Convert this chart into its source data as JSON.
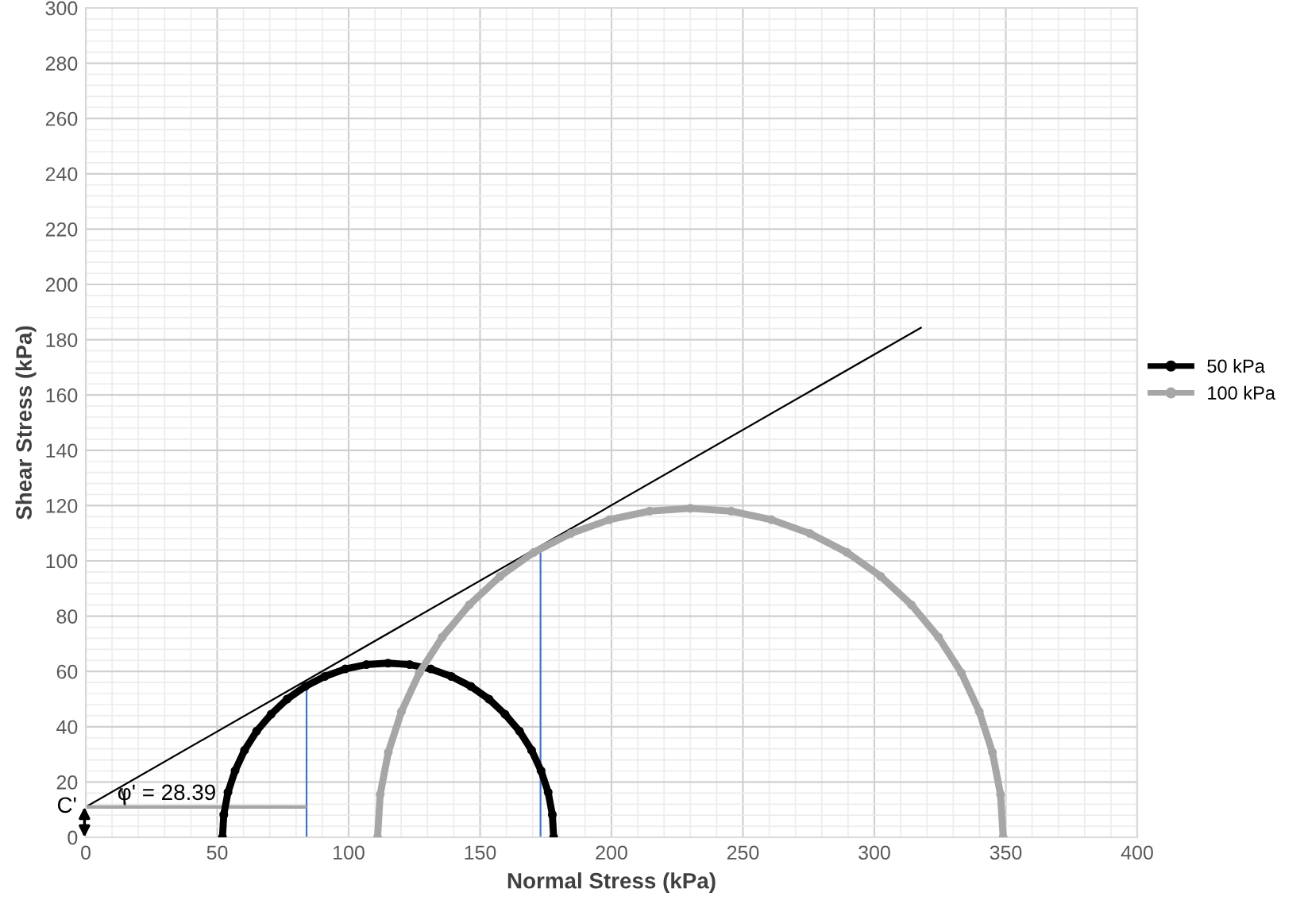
{
  "chart_data": {
    "type": "line",
    "xlabel": "Normal Stress (kPa)",
    "ylabel": "Shear Stress (kPa)",
    "xlim": [
      0,
      400
    ],
    "ylim": [
      0,
      300
    ],
    "xticks": [
      0,
      50,
      100,
      150,
      200,
      250,
      300,
      350,
      400
    ],
    "yticks": [
      0,
      20,
      40,
      60,
      80,
      100,
      120,
      140,
      160,
      180,
      200,
      220,
      240,
      260,
      280,
      300
    ],
    "grid": true,
    "legend": "right",
    "series": [
      {
        "name": "50 kPa",
        "color": "#000000",
        "marker": "circle",
        "x": [
          178,
          177.5,
          175.9,
          173.2,
          169.6,
          165,
          159.5,
          153.4,
          146.5,
          139.1,
          131.3,
          123.2,
          115,
          106.8,
          98.7,
          90.9,
          83.5,
          76.6,
          70.5,
          65,
          60.4,
          56.8,
          54.1,
          52.5,
          52
        ],
        "values": [
          0,
          8.2,
          16.3,
          24.1,
          31.5,
          38.4,
          44.5,
          50.0,
          54.6,
          58.2,
          60.9,
          62.5,
          63,
          62.5,
          60.9,
          58.2,
          54.6,
          50.0,
          44.5,
          38.4,
          31.5,
          24.1,
          16.3,
          8.2,
          0
        ]
      },
      {
        "name": "100 kPa",
        "color": "#a6a6a6",
        "marker": "circle",
        "x": [
          349,
          348,
          344.9,
          339.9,
          333.1,
          324.4,
          314.1,
          302.4,
          289.5,
          275.5,
          260.8,
          245.5,
          230,
          214.5,
          199.2,
          184.5,
          170.5,
          157.6,
          145.9,
          135.6,
          126.9,
          120.1,
          115.1,
          112,
          111
        ],
        "values": [
          0,
          15.5,
          30.8,
          45.5,
          59.5,
          72.4,
          84.1,
          94.4,
          103.1,
          109.9,
          114.9,
          118.0,
          119,
          118.0,
          114.9,
          109.9,
          103.1,
          94.4,
          84.1,
          72.4,
          59.5,
          45.5,
          30.8,
          15.5,
          0
        ]
      },
      {
        "color": "#000000",
        "x": [
          0,
          318
        ],
        "values": [
          11,
          184.5
        ]
      },
      {
        "color": "#4472c4",
        "x": [
          84,
          84
        ],
        "values": [
          0,
          56
        ]
      },
      {
        "color": "#4472c4",
        "x": [
          173,
          173
        ],
        "values": [
          0,
          105.5
        ]
      },
      {
        "color": "#a6a6a6",
        "x": [
          0,
          84
        ],
        "values": [
          11,
          11
        ]
      }
    ],
    "annotations": [
      {
        "text": "C'",
        "x": 0,
        "y": 11
      },
      "φ' = 28.39"
    ]
  }
}
